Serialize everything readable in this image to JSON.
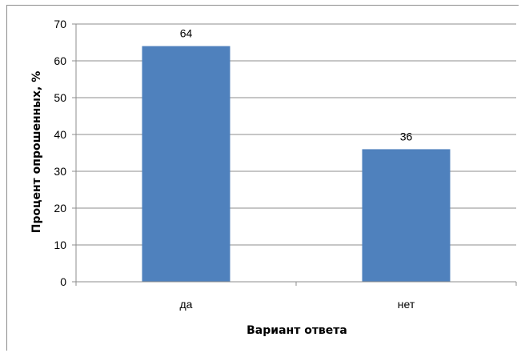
{
  "chart_data": {
    "type": "bar",
    "title": "",
    "categories": [
      "да",
      "нет"
    ],
    "values": [
      64,
      36
    ],
    "data_labels": [
      "64",
      "36"
    ],
    "xlabel": "Вариант ответа",
    "ylabel": "Процент опрошенных, %",
    "ylim": [
      0,
      70
    ],
    "yticks": [
      0,
      10,
      20,
      30,
      40,
      50,
      60,
      70
    ],
    "grid": true,
    "legend": "none",
    "bar_color": "#4F81BD",
    "grid_color": "#8C8C8C"
  }
}
